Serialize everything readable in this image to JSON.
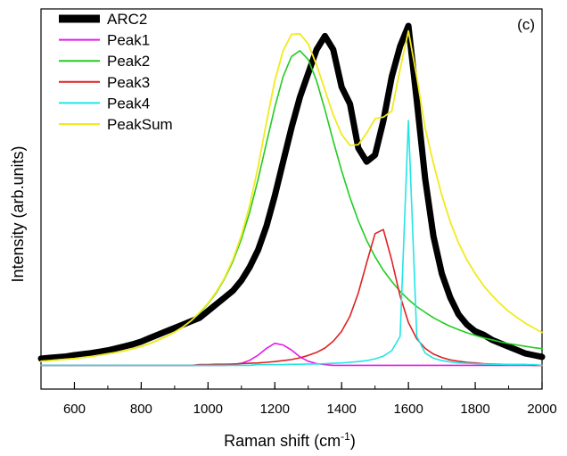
{
  "chart_data": {
    "type": "line",
    "panel_label": "(c)",
    "xlabel": "Raman shift (cm",
    "xlabel_superscript": "-1",
    "xlabel_suffix": ")",
    "ylabel": "Intensity (arb.units)",
    "xlim": [
      500,
      2000
    ],
    "ylim": [
      -0.07,
      1.05
    ],
    "x_ticks": [
      600,
      800,
      1000,
      1200,
      1400,
      1600,
      1800,
      2000
    ],
    "y_ticks_shown": false,
    "legend_position": "top-left",
    "x": [
      500,
      525,
      550,
      575,
      600,
      625,
      650,
      675,
      700,
      725,
      750,
      775,
      800,
      825,
      850,
      875,
      900,
      925,
      950,
      975,
      1000,
      1025,
      1050,
      1075,
      1100,
      1125,
      1150,
      1175,
      1200,
      1225,
      1250,
      1275,
      1300,
      1325,
      1350,
      1375,
      1400,
      1425,
      1450,
      1475,
      1500,
      1525,
      1550,
      1575,
      1600,
      1625,
      1650,
      1675,
      1700,
      1725,
      1750,
      1775,
      1800,
      1825,
      1850,
      1875,
      1900,
      1925,
      1950,
      1975,
      2000
    ],
    "series": [
      {
        "name": "ARC2",
        "color": "#000000",
        "values": [
          0.02,
          0.022,
          0.024,
          0.026,
          0.03,
          0.033,
          0.036,
          0.04,
          0.044,
          0.05,
          0.056,
          0.062,
          0.07,
          0.08,
          0.09,
          0.1,
          0.11,
          0.12,
          0.13,
          0.14,
          0.16,
          0.18,
          0.2,
          0.22,
          0.25,
          0.29,
          0.34,
          0.41,
          0.5,
          0.6,
          0.7,
          0.79,
          0.86,
          0.93,
          0.97,
          0.93,
          0.82,
          0.77,
          0.64,
          0.6,
          0.62,
          0.72,
          0.85,
          0.94,
          1.0,
          0.78,
          0.55,
          0.38,
          0.27,
          0.2,
          0.15,
          0.12,
          0.1,
          0.09,
          0.075,
          0.065,
          0.055,
          0.045,
          0.035,
          0.03,
          0.025
        ]
      },
      {
        "name": "Peak1",
        "color": "#e619e6",
        "values": [
          0,
          0,
          0,
          0,
          0,
          0,
          0,
          0,
          0,
          0,
          0,
          0,
          0,
          0,
          0,
          0,
          0,
          0,
          0,
          0,
          0,
          0,
          0,
          0.002,
          0.006,
          0.015,
          0.03,
          0.05,
          0.065,
          0.06,
          0.045,
          0.025,
          0.012,
          0.005,
          0.002,
          0,
          0,
          0,
          0,
          0,
          0,
          0,
          0,
          0,
          0,
          0,
          0,
          0,
          0,
          0,
          0,
          0,
          0,
          0,
          0,
          0,
          0,
          0,
          0,
          0,
          0
        ]
      },
      {
        "name": "Peak2",
        "color": "#22cc22",
        "values": [
          0.012,
          0.014,
          0.016,
          0.018,
          0.02,
          0.023,
          0.026,
          0.03,
          0.034,
          0.038,
          0.043,
          0.049,
          0.056,
          0.064,
          0.074,
          0.085,
          0.098,
          0.113,
          0.132,
          0.154,
          0.181,
          0.214,
          0.256,
          0.307,
          0.372,
          0.452,
          0.548,
          0.655,
          0.761,
          0.851,
          0.91,
          0.927,
          0.901,
          0.838,
          0.753,
          0.661,
          0.573,
          0.494,
          0.426,
          0.368,
          0.32,
          0.28,
          0.247,
          0.218,
          0.194,
          0.173,
          0.156,
          0.14,
          0.127,
          0.115,
          0.105,
          0.096,
          0.088,
          0.081,
          0.075,
          0.069,
          0.064,
          0.06,
          0.056,
          0.052,
          0.049
        ]
      },
      {
        "name": "Peak3",
        "color": "#dd2222",
        "values": [
          0,
          0,
          0,
          0,
          0,
          0,
          0,
          0,
          0,
          0,
          0,
          0,
          0,
          0,
          0,
          0,
          0,
          0,
          0,
          0.002,
          0.002,
          0.003,
          0.003,
          0.004,
          0.005,
          0.006,
          0.007,
          0.009,
          0.011,
          0.014,
          0.017,
          0.022,
          0.029,
          0.038,
          0.051,
          0.071,
          0.1,
          0.145,
          0.213,
          0.302,
          0.388,
          0.4,
          0.31,
          0.204,
          0.126,
          0.078,
          0.05,
          0.033,
          0.023,
          0.016,
          0.012,
          0.009,
          0.007,
          0.005,
          0.004,
          0.003,
          0.002,
          0.002,
          0.002,
          0,
          0
        ]
      },
      {
        "name": "Peak4",
        "color": "#22e5e5",
        "values": [
          0,
          0,
          0,
          0,
          0,
          0,
          0,
          0,
          0,
          0,
          0,
          0,
          0,
          0,
          0,
          0,
          0,
          0,
          0,
          0,
          0,
          0,
          0,
          0,
          0,
          0,
          0.002,
          0.002,
          0.002,
          0.002,
          0.003,
          0.003,
          0.004,
          0.004,
          0.005,
          0.006,
          0.007,
          0.009,
          0.011,
          0.014,
          0.019,
          0.027,
          0.043,
          0.085,
          0.721,
          0.085,
          0.036,
          0.021,
          0.014,
          0.01,
          0.007,
          0.006,
          0.005,
          0.004,
          0.003,
          0.003,
          0.002,
          0.002,
          0.002,
          0.002,
          0
        ]
      },
      {
        "name": "PeakSum",
        "color": "#f2ea1c",
        "values": [
          0.012,
          0.014,
          0.016,
          0.018,
          0.02,
          0.023,
          0.026,
          0.03,
          0.034,
          0.038,
          0.043,
          0.049,
          0.056,
          0.064,
          0.074,
          0.085,
          0.098,
          0.113,
          0.132,
          0.156,
          0.183,
          0.217,
          0.259,
          0.313,
          0.383,
          0.473,
          0.585,
          0.716,
          0.839,
          0.927,
          0.975,
          0.977,
          0.947,
          0.885,
          0.811,
          0.738,
          0.68,
          0.648,
          0.65,
          0.684,
          0.727,
          0.731,
          0.749,
          0.873,
          0.985,
          0.85,
          0.699,
          0.594,
          0.501,
          0.423,
          0.361,
          0.311,
          0.27,
          0.235,
          0.206,
          0.181,
          0.159,
          0.141,
          0.124,
          0.11,
          0.097
        ]
      }
    ]
  }
}
